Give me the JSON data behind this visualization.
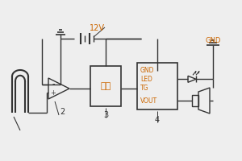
{
  "bg_color": "#eeeeee",
  "line_color": "#333333",
  "text_color": "#cc6600",
  "black": "#333333",
  "label_2": "2",
  "label_3": "3",
  "label_4": "4",
  "label_12v": "12V",
  "label_vout": "VOUT",
  "label_tg": "TG",
  "label_led": "LED",
  "label_gnd": "GND",
  "label_input": "输入",
  "figsize": [
    3.0,
    2.0
  ],
  "dpi": 100
}
